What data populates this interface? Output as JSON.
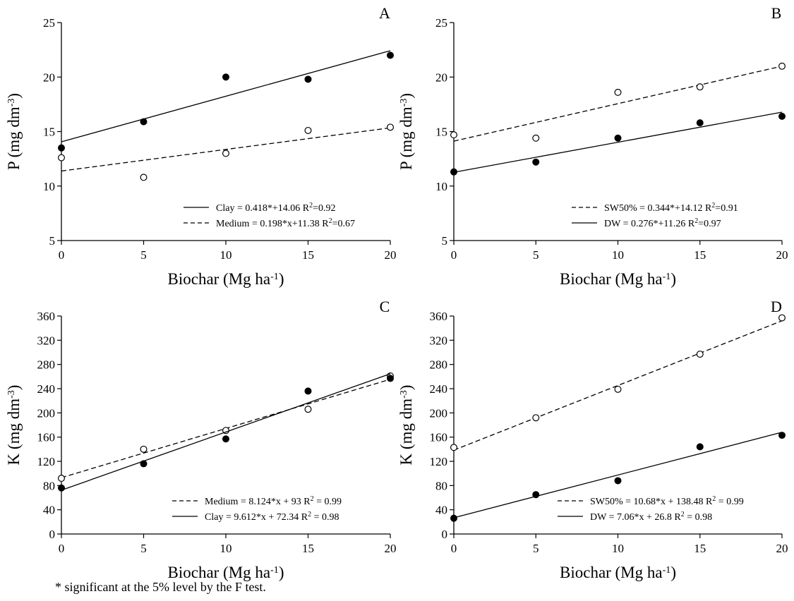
{
  "chart_data": [
    {
      "id": "A",
      "type": "scatter",
      "panel_label": "A",
      "xlabel": "Biochar (Mg ha",
      "xlabel_sup": "-1",
      "xlabel_end": ")",
      "ylabel": "P (mg dm",
      "ylabel_sup": "-3",
      "ylabel_end": ")",
      "xlim": [
        0,
        20
      ],
      "ylim": [
        5,
        25
      ],
      "xticks": [
        0,
        5,
        10,
        15,
        20
      ],
      "yticks": [
        5,
        10,
        15,
        20,
        25
      ],
      "legend_position": "bottom-right",
      "series": [
        {
          "name": "Clay",
          "marker": "filled",
          "line": "solid",
          "x": [
            0,
            5,
            10,
            15,
            20
          ],
          "y": [
            13.5,
            15.9,
            20.0,
            19.8,
            22.0
          ],
          "fit": {
            "slope": 0.418,
            "intercept": 14.06
          },
          "legend_label": "Clay = 0.418*+14.06 R",
          "r2_label": "=0.92"
        },
        {
          "name": "Medium",
          "marker": "open",
          "line": "dashed",
          "x": [
            0,
            5,
            10,
            15,
            20
          ],
          "y": [
            12.6,
            10.8,
            13.0,
            15.1,
            15.4
          ],
          "fit": {
            "slope": 0.198,
            "intercept": 11.38
          },
          "legend_label": "Medium = 0.198*x+11.38 R",
          "r2_label": "=0.67"
        }
      ]
    },
    {
      "id": "B",
      "type": "scatter",
      "panel_label": "B",
      "xlabel": "Biochar (Mg ha",
      "xlabel_sup": "-1",
      "xlabel_end": ")",
      "ylabel": "P (mg dm",
      "ylabel_sup": "-3",
      "ylabel_end": ")",
      "xlim": [
        0,
        20
      ],
      "ylim": [
        5,
        25
      ],
      "xticks": [
        0,
        5,
        10,
        15,
        20
      ],
      "yticks": [
        5,
        10,
        15,
        20,
        25
      ],
      "legend_position": "bottom-right",
      "series": [
        {
          "name": "SW50%",
          "marker": "open",
          "line": "dashed",
          "x": [
            0,
            5,
            10,
            15,
            20
          ],
          "y": [
            14.7,
            14.4,
            18.6,
            19.1,
            21.0
          ],
          "fit": {
            "slope": 0.344,
            "intercept": 14.12
          },
          "legend_label": "SW50% = 0.344*+14.12 R",
          "r2_label": "=0.91"
        },
        {
          "name": "DW",
          "marker": "filled",
          "line": "solid",
          "x": [
            0,
            5,
            10,
            15,
            20
          ],
          "y": [
            11.3,
            12.2,
            14.4,
            15.8,
            16.4
          ],
          "fit": {
            "slope": 0.276,
            "intercept": 11.26
          },
          "legend_label": "DW = 0.276*+11.26 R",
          "r2_label": "=0.97"
        }
      ]
    },
    {
      "id": "C",
      "type": "scatter",
      "panel_label": "C",
      "xlabel": "Biochar (Mg ha",
      "xlabel_sup": "-1",
      "xlabel_end": ")",
      "ylabel": "K (mg dm",
      "ylabel_sup": "-3",
      "ylabel_end": ")",
      "xlim": [
        0,
        20
      ],
      "ylim": [
        0,
        360
      ],
      "xticks": [
        0,
        5,
        10,
        15,
        20
      ],
      "yticks": [
        0,
        40,
        80,
        120,
        160,
        200,
        240,
        280,
        320,
        360
      ],
      "legend_position": "bottom-right",
      "series": [
        {
          "name": "Medium",
          "marker": "open",
          "line": "dashed",
          "x": [
            0,
            5,
            10,
            15,
            20
          ],
          "y": [
            92,
            140,
            171,
            206,
            261
          ],
          "fit": {
            "slope": 8.124,
            "intercept": 93
          },
          "legend_label": "Medium = 8.124*x + 93 R",
          "r2_label": " = 0.99"
        },
        {
          "name": "Clay",
          "marker": "filled",
          "line": "solid",
          "x": [
            0,
            5,
            10,
            15,
            20
          ],
          "y": [
            76,
            116,
            157,
            236,
            257
          ],
          "fit": {
            "slope": 9.612,
            "intercept": 72.34
          },
          "legend_label": "Clay = 9.612*x + 72.34 R",
          "r2_label": " = 0.98"
        }
      ]
    },
    {
      "id": "D",
      "type": "scatter",
      "panel_label": "D",
      "xlabel": "Biochar (Mg ha",
      "xlabel_sup": "-1",
      "xlabel_end": ")",
      "ylabel": "K (mg dm",
      "ylabel_sup": "-3",
      "ylabel_end": ")",
      "xlim": [
        0,
        20
      ],
      "ylim": [
        0,
        360
      ],
      "xticks": [
        0,
        5,
        10,
        15,
        20
      ],
      "yticks": [
        0,
        40,
        80,
        120,
        160,
        200,
        240,
        280,
        320,
        360
      ],
      "legend_position": "bottom-right",
      "series": [
        {
          "name": "SW50%",
          "marker": "open",
          "line": "dashed",
          "x": [
            0,
            5,
            10,
            15,
            20
          ],
          "y": [
            143,
            192,
            239,
            297,
            357
          ],
          "fit": {
            "slope": 10.68,
            "intercept": 138.48
          },
          "legend_label": "SW50% = 10.68*x + 138.48 R",
          "r2_label": " = 0.99"
        },
        {
          "name": "DW",
          "marker": "filled",
          "line": "solid",
          "x": [
            0,
            5,
            10,
            15,
            20
          ],
          "y": [
            26,
            65,
            88,
            144,
            163
          ],
          "fit": {
            "slope": 7.06,
            "intercept": 26.8
          },
          "legend_label": "DW = 7.06*x + 26.8 R",
          "r2_label": " = 0.98"
        }
      ]
    }
  ],
  "r2_sup": "2",
  "footnote": "* significant at the 5% level by the F test."
}
